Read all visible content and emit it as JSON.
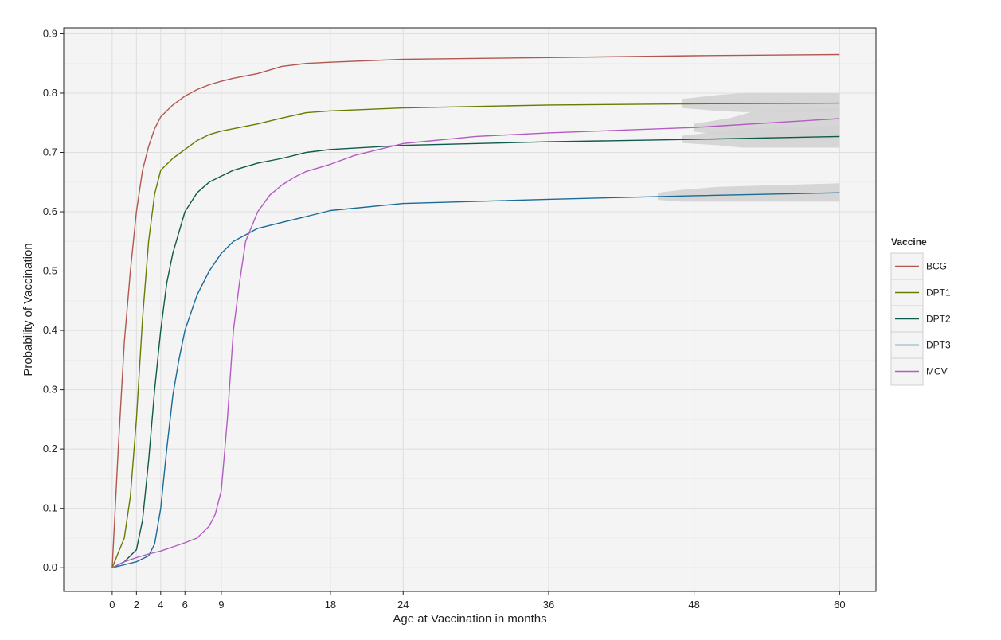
{
  "chart_data": {
    "type": "line",
    "xlabel": "Age at Vaccination in months",
    "ylabel": "Probability of Vaccination",
    "xlim": [
      -4,
      63
    ],
    "ylim": [
      -0.04,
      0.91
    ],
    "x_ticks": [
      0,
      2,
      4,
      6,
      9,
      18,
      24,
      36,
      48,
      60
    ],
    "y_ticks": [
      0.0,
      0.1,
      0.2,
      0.3,
      0.4,
      0.5,
      0.6,
      0.7,
      0.8,
      0.9
    ],
    "x_tick_labels": [
      "0",
      "2",
      "4",
      "6",
      "9",
      "18",
      "24",
      "36",
      "48",
      "60"
    ],
    "y_tick_labels": [
      "0.0",
      "0.1",
      "0.2",
      "0.3",
      "0.4",
      "0.5",
      "0.6",
      "0.7",
      "0.8",
      "0.9"
    ],
    "grid": true,
    "legend": {
      "title": "Vaccine",
      "position": "right"
    },
    "confidence_band_color": "#d3d3d3",
    "series": [
      {
        "name": "BCG",
        "color": "#b2574f",
        "x": [
          0,
          0.5,
          1,
          1.5,
          2,
          2.5,
          3,
          3.5,
          4,
          5,
          6,
          7,
          8,
          9,
          10,
          12,
          14,
          16,
          18,
          24,
          36,
          48,
          60
        ],
        "y": [
          0.0,
          0.2,
          0.38,
          0.5,
          0.6,
          0.67,
          0.71,
          0.74,
          0.76,
          0.78,
          0.795,
          0.806,
          0.814,
          0.82,
          0.825,
          0.833,
          0.845,
          0.85,
          0.852,
          0.857,
          0.86,
          0.863,
          0.865
        ],
        "band": []
      },
      {
        "name": "DPT1",
        "color": "#6b7a00",
        "x": [
          0,
          1,
          1.5,
          2,
          2.5,
          3,
          3.5,
          4,
          5,
          6,
          7,
          8,
          9,
          10,
          12,
          14,
          16,
          18,
          24,
          36,
          48,
          60
        ],
        "y": [
          0.0,
          0.05,
          0.12,
          0.25,
          0.42,
          0.55,
          0.63,
          0.67,
          0.69,
          0.705,
          0.72,
          0.73,
          0.736,
          0.74,
          0.748,
          0.758,
          0.767,
          0.77,
          0.775,
          0.78,
          0.782,
          0.783
        ],
        "band": [
          [
            47,
            0.775,
            0.79
          ],
          [
            50,
            0.77,
            0.797
          ],
          [
            52,
            0.768,
            0.8
          ],
          [
            60,
            0.768,
            0.8
          ]
        ]
      },
      {
        "name": "DPT2",
        "color": "#0f5a4a",
        "x": [
          0,
          1,
          2,
          2.5,
          3,
          3.5,
          4,
          4.5,
          5,
          6,
          7,
          8,
          9,
          10,
          12,
          14,
          16,
          18,
          24,
          36,
          48,
          60
        ],
        "y": [
          0.0,
          0.01,
          0.03,
          0.08,
          0.18,
          0.3,
          0.4,
          0.48,
          0.53,
          0.6,
          0.632,
          0.65,
          0.66,
          0.67,
          0.682,
          0.69,
          0.7,
          0.705,
          0.712,
          0.718,
          0.722,
          0.727
        ],
        "band": [
          [
            47,
            0.716,
            0.728
          ],
          [
            50,
            0.712,
            0.735
          ],
          [
            52,
            0.708,
            0.74
          ],
          [
            60,
            0.708,
            0.745
          ]
        ]
      },
      {
        "name": "DPT3",
        "color": "#1a6b96",
        "x": [
          0,
          1,
          2,
          3,
          3.5,
          4,
          4.5,
          5,
          5.5,
          6,
          7,
          8,
          9,
          10,
          12,
          14,
          16,
          18,
          24,
          36,
          48,
          60
        ],
        "y": [
          0.0,
          0.005,
          0.01,
          0.02,
          0.04,
          0.1,
          0.2,
          0.29,
          0.35,
          0.4,
          0.46,
          0.5,
          0.53,
          0.55,
          0.572,
          0.582,
          0.592,
          0.602,
          0.614,
          0.621,
          0.627,
          0.632
        ],
        "band": [
          [
            45,
            0.62,
            0.632
          ],
          [
            47,
            0.617,
            0.637
          ],
          [
            50,
            0.617,
            0.642
          ],
          [
            60,
            0.617,
            0.648
          ]
        ]
      },
      {
        "name": "MCV",
        "color": "#b35cc2",
        "x": [
          0,
          1,
          2,
          3,
          4,
          5,
          6,
          7,
          8,
          8.5,
          9,
          9.5,
          10,
          10.5,
          11,
          12,
          13,
          14,
          15,
          16,
          18,
          20,
          22,
          24,
          30,
          36,
          48,
          60
        ],
        "y": [
          0.0,
          0.01,
          0.017,
          0.023,
          0.028,
          0.035,
          0.042,
          0.05,
          0.07,
          0.09,
          0.13,
          0.25,
          0.4,
          0.48,
          0.55,
          0.6,
          0.628,
          0.645,
          0.658,
          0.668,
          0.68,
          0.695,
          0.705,
          0.715,
          0.727,
          0.733,
          0.742,
          0.757
        ],
        "band": [
          [
            48,
            0.735,
            0.748
          ],
          [
            51,
            0.728,
            0.758
          ],
          [
            53,
            0.722,
            0.77
          ],
          [
            60,
            0.722,
            0.775
          ]
        ]
      }
    ]
  }
}
